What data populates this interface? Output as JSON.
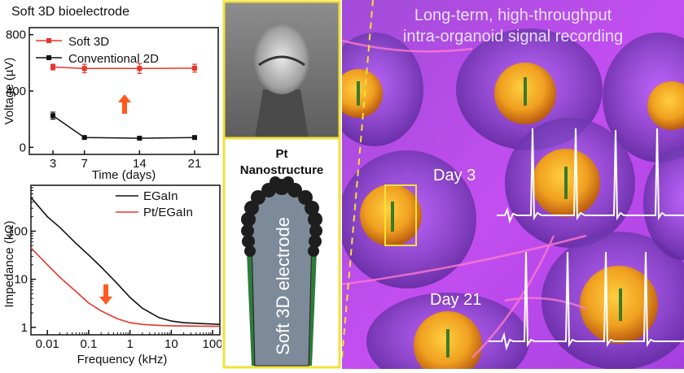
{
  "panel_left": {
    "title": "Soft 3D bioelectrode"
  },
  "panel_mid": {
    "label_line1": "Pt",
    "label_line2": "Nanostructure",
    "electrode_label": "Soft 3D electrode"
  },
  "panel_right": {
    "title_line1": "Long-term, high-throughput",
    "title_line2": "intra-organoid signal recording",
    "day3_label": "Day 3",
    "day21_label": "Day 21"
  },
  "chart_data": [
    {
      "type": "line",
      "ylabel": "Voltage (µV)",
      "xlabel": "Time (days)",
      "x": [
        3,
        7,
        14,
        21
      ],
      "x_ticks": [
        "3",
        "7",
        "14",
        "21"
      ],
      "y_ticks": [
        "0",
        "400",
        "800"
      ],
      "ylim": [
        -50,
        850
      ],
      "series": [
        {
          "name": "Soft 3D",
          "color": "#e8352a",
          "values": [
            570,
            560,
            560,
            562
          ],
          "errors": [
            20,
            30,
            35,
            28
          ]
        },
        {
          "name": "Conventional 2D",
          "color": "#111111",
          "values": [
            225,
            70,
            65,
            70
          ],
          "errors": [
            25,
            5,
            5,
            5
          ]
        }
      ],
      "legend_position": "top-right",
      "annotation": "arrow-up"
    },
    {
      "type": "line",
      "ylabel": "Impedance (kΩ)",
      "xlabel": "Frequency (kHz)",
      "xscale": "log",
      "yscale": "log",
      "x_ticks": [
        "0.01",
        "0.1",
        "1",
        "10",
        "100"
      ],
      "y_ticks": [
        "1",
        "10",
        "100"
      ],
      "xlim": [
        0.004,
        150
      ],
      "ylim": [
        0.7,
        900
      ],
      "series": [
        {
          "name": "EGaIn",
          "color": "#111111",
          "x": [
            0.004,
            0.005,
            0.01,
            0.02,
            0.05,
            0.1,
            0.2,
            0.5,
            1,
            2,
            5,
            10,
            20,
            50,
            150
          ],
          "values": [
            500,
            400,
            200,
            120,
            55,
            32,
            18,
            8,
            4.2,
            2.5,
            1.6,
            1.35,
            1.25,
            1.2,
            1.15
          ]
        },
        {
          "name": "Pt/EGaIn",
          "color": "#e8352a",
          "x": [
            0.004,
            0.01,
            0.02,
            0.05,
            0.1,
            0.2,
            0.5,
            1,
            2,
            5,
            10,
            20,
            50,
            150
          ],
          "values": [
            45,
            20,
            11,
            5.5,
            3.2,
            2.2,
            1.5,
            1.25,
            1.15,
            1.1,
            1.08,
            1.07,
            1.06,
            1.05
          ]
        }
      ],
      "legend_position": "top-right",
      "annotation": "arrow-down"
    }
  ]
}
